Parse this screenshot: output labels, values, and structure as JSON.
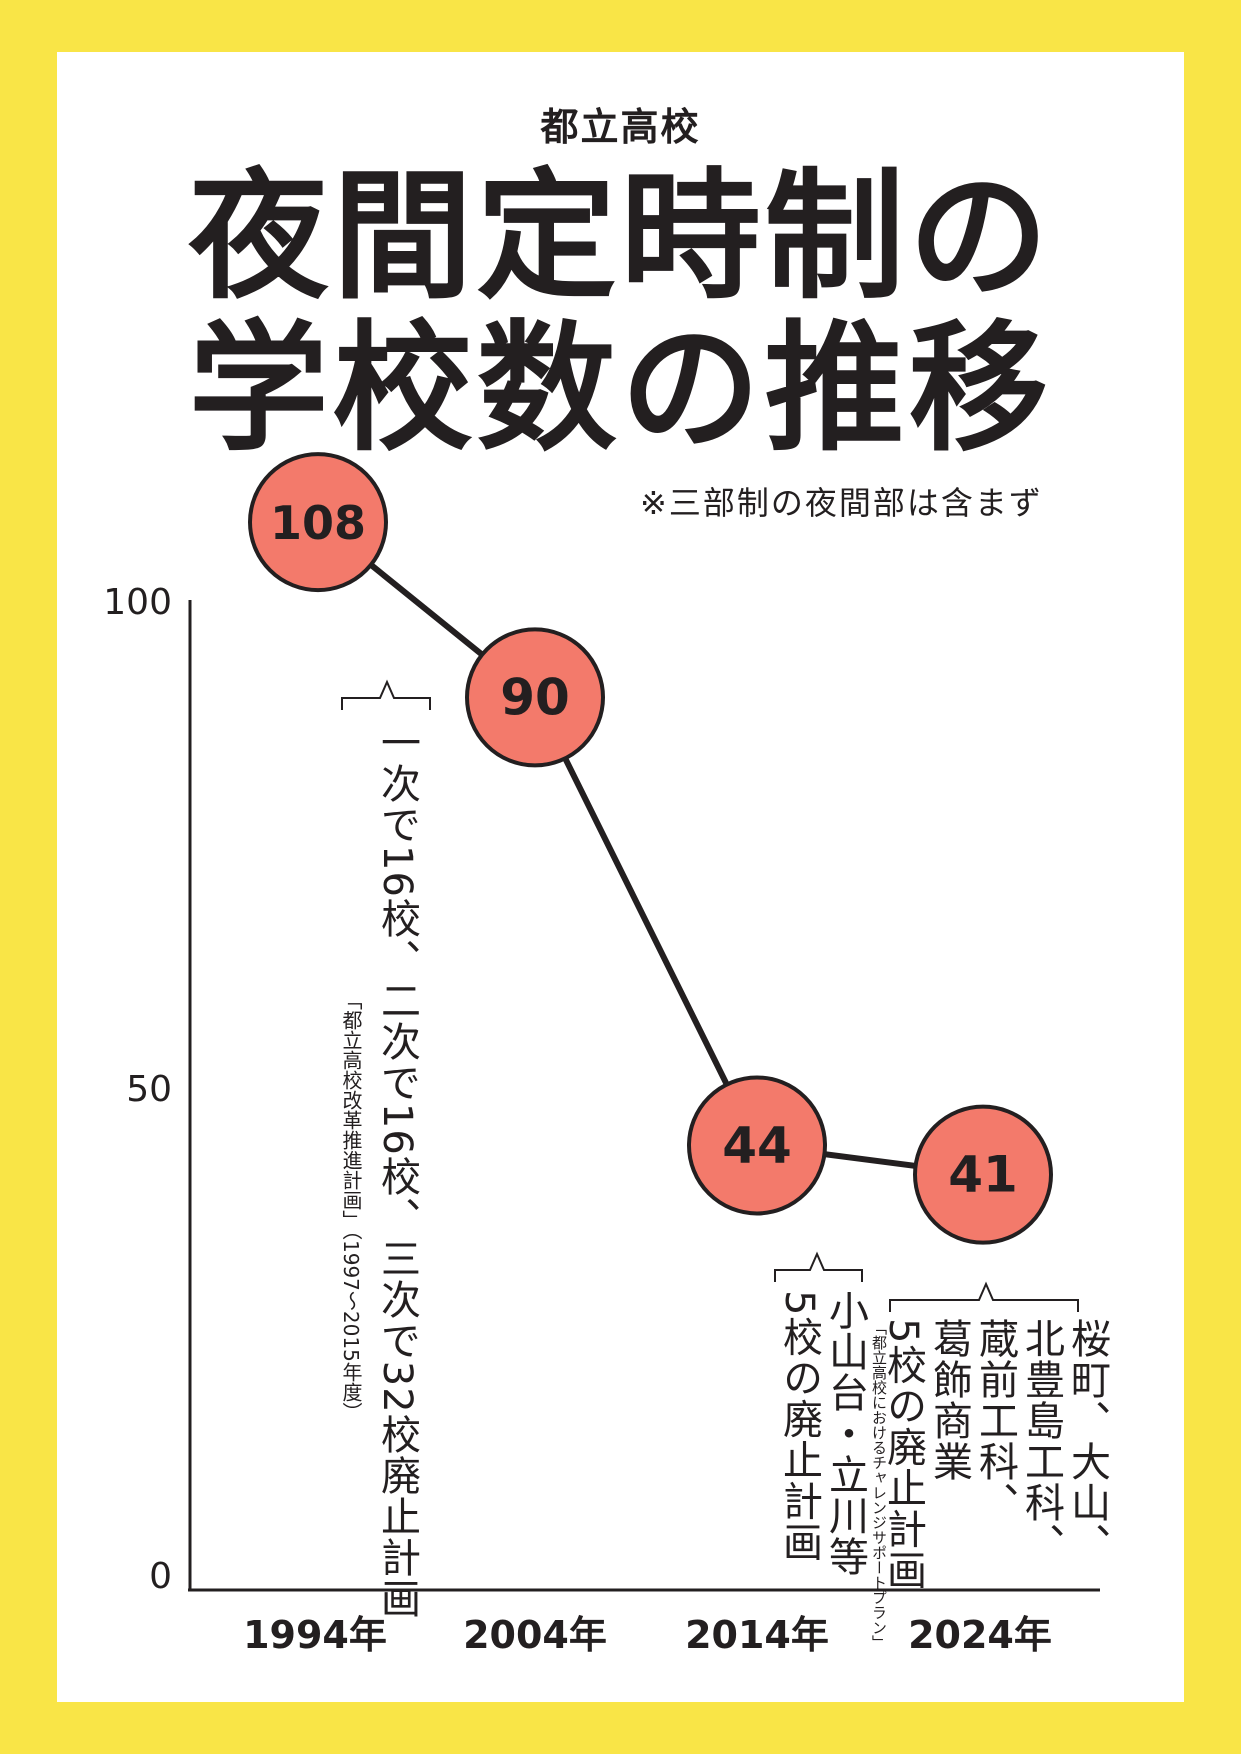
{
  "page": {
    "subtitle": "都立高校",
    "title_line1": "夜間定時制の",
    "title_line2": "学校数の推移",
    "note": "※三部制の夜間部は含まず"
  },
  "colors": {
    "background": "#f9e547",
    "panel": "#ffffff",
    "marker": "#f37a6b",
    "ink": "#231f20"
  },
  "chart_data": {
    "type": "line",
    "x": [
      "1994年",
      "2004年",
      "2014年",
      "2024年"
    ],
    "values": [
      108,
      90,
      44,
      41
    ],
    "data_labels": [
      "108",
      "90",
      "44",
      "41"
    ],
    "ylim": [
      0,
      100
    ],
    "y_ticks": [
      "0",
      "50",
      "100"
    ],
    "grid": false,
    "annotations": [
      {
        "between": [
          "1994年",
          "2004年"
        ],
        "text": "一次で16校、二次で16校、三次で32校廃止計画",
        "source": "「都立高校改革推進計画」（1997～2015年度）"
      },
      {
        "after": "2014年",
        "lines": [
          "小山台・立川等",
          "5校の廃止計画"
        ]
      },
      {
        "after": "2024年",
        "lines": [
          "桜町、大山、",
          "北豊島工科、",
          "蔵前工科、",
          "葛飾商業",
          "5校の廃止計画"
        ],
        "source": "「都立高校におけるチャレンジサポートプラン」"
      }
    ]
  }
}
